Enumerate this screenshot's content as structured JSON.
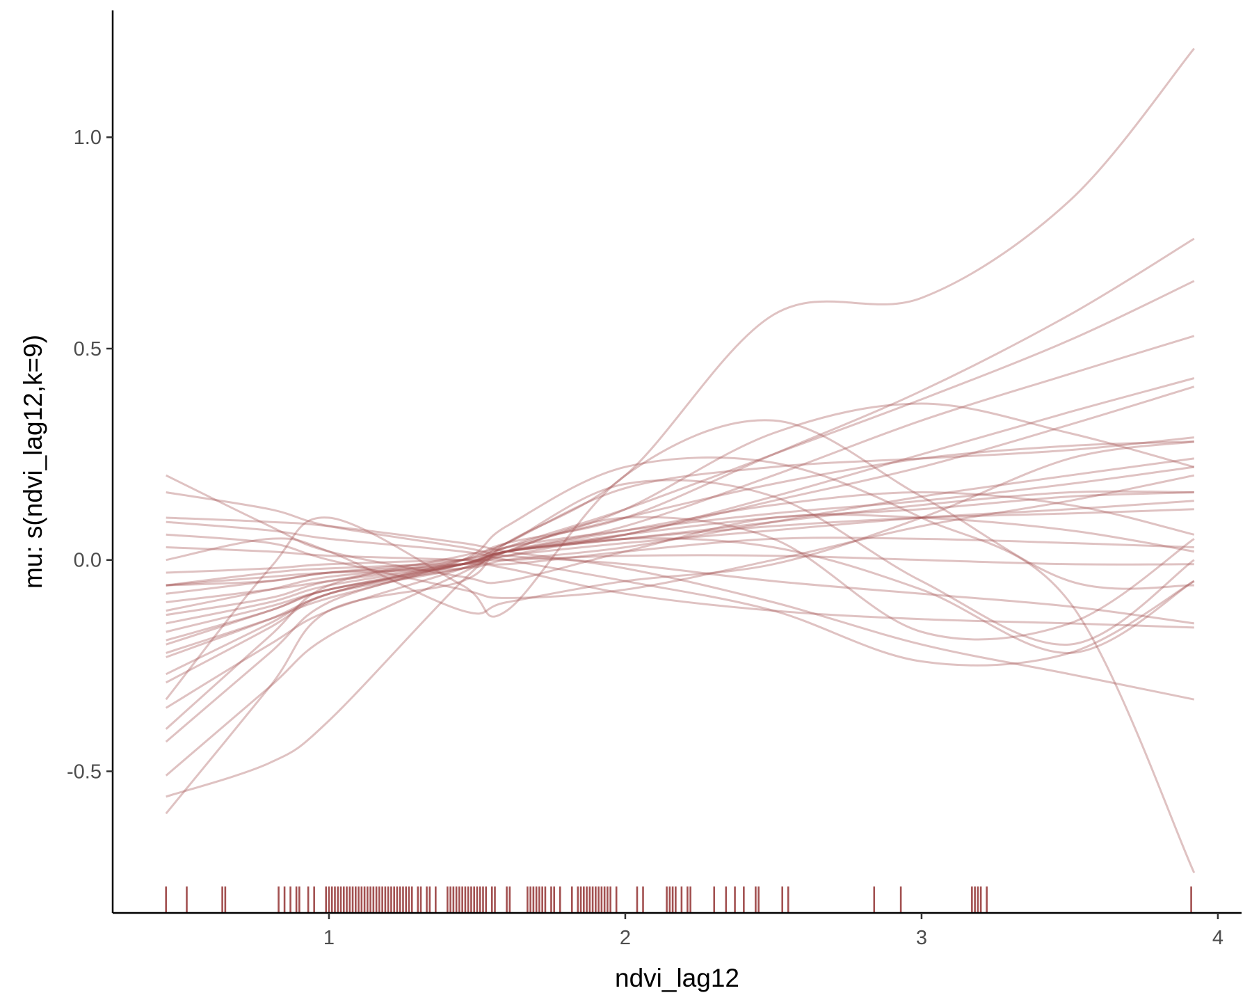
{
  "chart_data": {
    "type": "line",
    "title": "",
    "xlabel": "ndvi_lag12",
    "ylabel": "mu: s(ndvi_lag12,k=9)",
    "xlim": [
      0.27,
      4.08
    ],
    "ylim": [
      -0.835,
      1.3
    ],
    "x_ticks": [
      1,
      2,
      3,
      4
    ],
    "x_tick_labels": [
      "1",
      "2",
      "3",
      "4"
    ],
    "y_ticks": [
      -0.5,
      0.0,
      0.5,
      1.0
    ],
    "y_tick_labels": [
      "-0.5",
      "0.0",
      "0.5",
      "1.0"
    ],
    "grid": false,
    "legend": "none",
    "line_color": "#A25050",
    "line_opacity": 0.35,
    "rug_color": "#A25050",
    "x": [
      0.45,
      0.8,
      1.0,
      1.45,
      1.6,
      2.0,
      2.5,
      3.0,
      3.5,
      3.92
    ],
    "series": [
      {
        "values": [
          -0.6,
          -0.3,
          -0.12,
          -0.05,
          0.04,
          0.2,
          0.58,
          0.62,
          0.85,
          1.21
        ]
      },
      {
        "values": [
          -0.23,
          -0.14,
          -0.08,
          0.0,
          0.04,
          0.1,
          0.25,
          0.4,
          0.58,
          0.76
        ]
      },
      {
        "values": [
          -0.35,
          -0.2,
          -0.12,
          -0.02,
          0.03,
          0.12,
          0.25,
          0.38,
          0.52,
          0.66
        ]
      },
      {
        "values": [
          -0.51,
          -0.3,
          -0.18,
          -0.03,
          0.02,
          0.08,
          0.2,
          0.33,
          0.44,
          0.53
        ]
      },
      {
        "values": [
          -0.19,
          -0.12,
          -0.07,
          -0.01,
          0.02,
          0.06,
          0.15,
          0.25,
          0.35,
          0.43
        ]
      },
      {
        "values": [
          -0.22,
          -0.14,
          -0.09,
          -0.01,
          0.02,
          0.06,
          0.14,
          0.22,
          0.32,
          0.41
        ]
      },
      {
        "values": [
          -0.56,
          -0.48,
          -0.38,
          -0.05,
          0.02,
          0.12,
          0.3,
          0.37,
          0.3,
          0.22
        ]
      },
      {
        "values": [
          -0.43,
          -0.22,
          -0.1,
          0.0,
          0.08,
          0.22,
          0.23,
          0.1,
          -0.1,
          -0.74
        ]
      },
      {
        "values": [
          -0.13,
          -0.09,
          -0.05,
          0.0,
          0.04,
          0.17,
          0.22,
          0.24,
          0.26,
          0.29
        ]
      },
      {
        "values": [
          -0.08,
          -0.05,
          -0.03,
          0.0,
          0.03,
          0.1,
          0.18,
          0.24,
          0.27,
          0.28
        ]
      },
      {
        "values": [
          -0.06,
          -0.05,
          -0.03,
          -0.01,
          0.02,
          0.06,
          0.1,
          0.12,
          0.15,
          0.16
        ]
      },
      {
        "values": [
          -0.1,
          -0.07,
          -0.05,
          -0.01,
          0.02,
          0.05,
          0.09,
          0.13,
          0.16,
          0.16
        ]
      },
      {
        "values": [
          -0.17,
          -0.11,
          -0.07,
          -0.01,
          0.03,
          0.07,
          0.11,
          0.14,
          0.18,
          0.22
        ]
      },
      {
        "values": [
          -0.12,
          -0.07,
          -0.04,
          -0.01,
          0.01,
          0.04,
          0.07,
          0.1,
          0.12,
          0.14
        ]
      },
      {
        "values": [
          -0.29,
          -0.16,
          -0.08,
          -0.01,
          0.02,
          0.05,
          0.08,
          0.1,
          0.11,
          0.12
        ]
      },
      {
        "values": [
          0.2,
          0.08,
          0.02,
          -0.04,
          -0.05,
          0.02,
          0.1,
          0.1,
          0.07,
          0.02
        ]
      },
      {
        "values": [
          0.16,
          0.12,
          0.08,
          0.03,
          0.01,
          -0.01,
          -0.05,
          -0.08,
          -0.11,
          -0.15
        ]
      },
      {
        "values": [
          0.1,
          0.09,
          0.08,
          0.04,
          0.02,
          -0.02,
          -0.1,
          -0.2,
          -0.27,
          -0.33
        ]
      },
      {
        "values": [
          0.09,
          0.07,
          0.05,
          0.02,
          0.0,
          -0.05,
          -0.12,
          -0.24,
          -0.22,
          -0.05
        ]
      },
      {
        "values": [
          0.03,
          0.02,
          0.01,
          0.0,
          -0.01,
          0.02,
          0.05,
          0.05,
          0.04,
          0.03
        ]
      },
      {
        "values": [
          -0.03,
          -0.02,
          -0.01,
          0.0,
          0.0,
          0.01,
          0.01,
          0.0,
          -0.01,
          -0.01
        ]
      },
      {
        "values": [
          -0.06,
          -0.03,
          -0.02,
          -0.01,
          -0.02,
          -0.08,
          -0.12,
          -0.14,
          -0.15,
          -0.16
        ]
      },
      {
        "values": [
          -0.33,
          -0.02,
          0.1,
          -0.06,
          -0.12,
          0.2,
          0.33,
          0.15,
          -0.05,
          -0.06
        ]
      },
      {
        "values": [
          -0.4,
          -0.18,
          -0.06,
          0.01,
          0.04,
          0.18,
          0.15,
          -0.05,
          -0.2,
          0.0
        ]
      },
      {
        "values": [
          0.0,
          0.05,
          0.02,
          -0.12,
          -0.1,
          -0.05,
          -0.01,
          0.1,
          0.24,
          0.28
        ]
      },
      {
        "values": [
          -0.27,
          -0.15,
          -0.08,
          -0.02,
          0.02,
          0.1,
          0.05,
          -0.17,
          -0.15,
          0.05
        ]
      },
      {
        "values": [
          0.06,
          0.04,
          0.0,
          -0.07,
          -0.09,
          -0.07,
          0.0,
          0.08,
          0.14,
          0.2
        ]
      },
      {
        "values": [
          -0.2,
          -0.12,
          -0.07,
          -0.02,
          0.01,
          0.05,
          0.03,
          -0.07,
          -0.22,
          -0.05
        ]
      },
      {
        "values": [
          -0.06,
          -0.04,
          -0.03,
          -0.02,
          0.0,
          0.03,
          0.09,
          0.15,
          0.2,
          0.24
        ]
      },
      {
        "values": [
          -0.15,
          -0.1,
          -0.06,
          -0.01,
          0.02,
          0.07,
          0.13,
          0.16,
          0.13,
          0.06
        ]
      }
    ],
    "rug": [
      0.45,
      0.52,
      0.64,
      0.65,
      0.83,
      0.85,
      0.87,
      0.89,
      0.9,
      0.93,
      0.95,
      0.99,
      1.0,
      1.01,
      1.02,
      1.03,
      1.04,
      1.05,
      1.06,
      1.07,
      1.08,
      1.09,
      1.1,
      1.11,
      1.12,
      1.13,
      1.14,
      1.15,
      1.16,
      1.17,
      1.18,
      1.19,
      1.2,
      1.21,
      1.22,
      1.23,
      1.24,
      1.25,
      1.26,
      1.27,
      1.28,
      1.3,
      1.31,
      1.33,
      1.34,
      1.36,
      1.4,
      1.41,
      1.42,
      1.43,
      1.44,
      1.45,
      1.46,
      1.47,
      1.48,
      1.49,
      1.5,
      1.51,
      1.52,
      1.53,
      1.55,
      1.56,
      1.6,
      1.61,
      1.67,
      1.68,
      1.69,
      1.7,
      1.71,
      1.72,
      1.73,
      1.75,
      1.76,
      1.78,
      1.82,
      1.84,
      1.85,
      1.86,
      1.87,
      1.88,
      1.89,
      1.9,
      1.91,
      1.92,
      1.93,
      1.94,
      1.95,
      1.97,
      2.04,
      2.06,
      2.14,
      2.15,
      2.16,
      2.17,
      2.19,
      2.21,
      2.22,
      2.3,
      2.34,
      2.37,
      2.4,
      2.44,
      2.45,
      2.53,
      2.55,
      2.84,
      2.93,
      3.17,
      3.18,
      3.19,
      3.2,
      3.22,
      3.91
    ]
  }
}
